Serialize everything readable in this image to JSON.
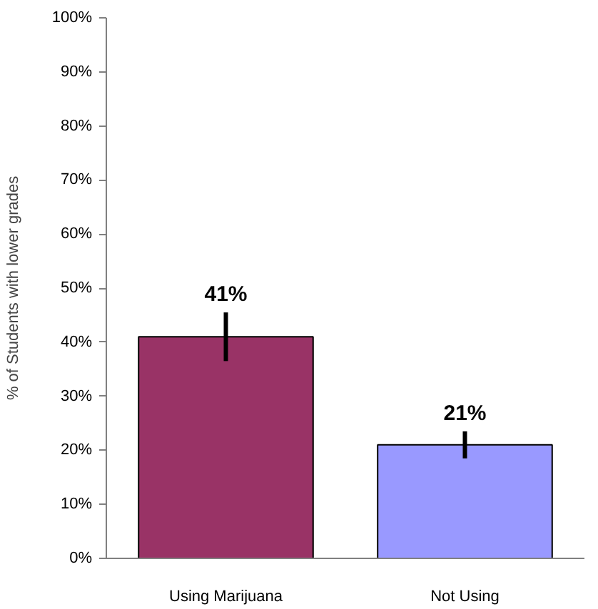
{
  "chart_data": {
    "type": "bar",
    "ylabel": "% of Students with lower grades",
    "categories": [
      "Using Marijuana",
      "Not Using"
    ],
    "values": [
      41,
      21
    ],
    "errors": [
      4.5,
      2.5
    ],
    "colors": [
      "#993366",
      "#9999ff"
    ],
    "data_labels": true,
    "value_labels": [
      "41%",
      "21%"
    ],
    "ylim": [
      0,
      100
    ],
    "yticks": [
      {
        "value": 0,
        "label": "0%"
      },
      {
        "value": 10,
        "label": "10%"
      },
      {
        "value": 20,
        "label": "20%"
      },
      {
        "value": 30,
        "label": "30%"
      },
      {
        "value": 40,
        "label": "40%"
      },
      {
        "value": 50,
        "label": "50%"
      },
      {
        "value": 60,
        "label": "60%"
      },
      {
        "value": 70,
        "label": "70%"
      },
      {
        "value": 80,
        "label": "80%"
      },
      {
        "value": 90,
        "label": "90%"
      },
      {
        "value": 100,
        "label": "100%"
      }
    ],
    "grid": false
  }
}
